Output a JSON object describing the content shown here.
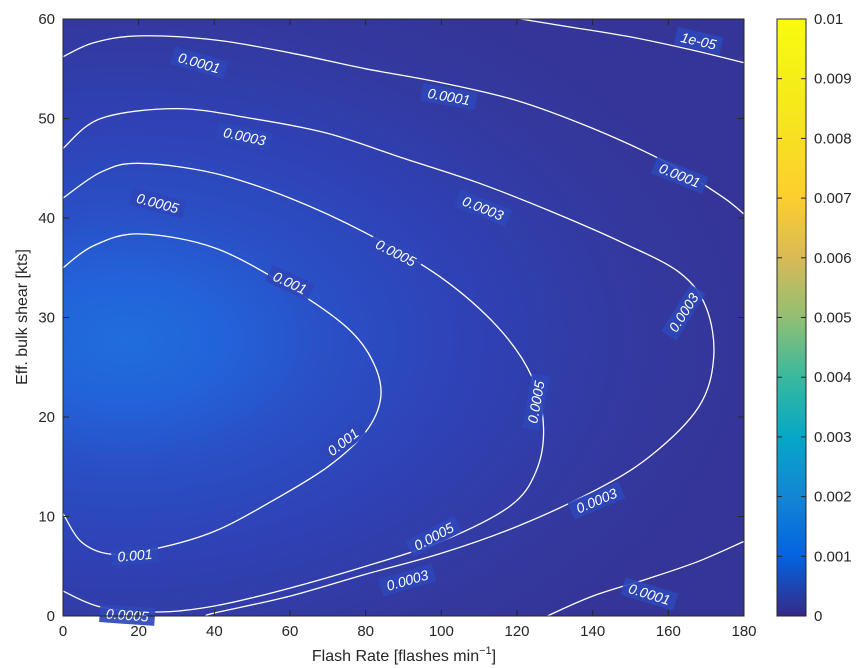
{
  "chart_data": {
    "type": "heatmap",
    "title": "",
    "xlabel": "Flash Rate [flashes min",
    "xlabel_sup": "−1",
    "xlabel_close": "]",
    "ylabel": "Eff. bulk shear [kts]",
    "xlim": [
      0,
      180
    ],
    "ylim": [
      0,
      60
    ],
    "x_ticks": [
      "0",
      "20",
      "40",
      "60",
      "80",
      "100",
      "120",
      "140",
      "160",
      "180"
    ],
    "y_ticks": [
      "0",
      "10",
      "20",
      "30",
      "40",
      "50",
      "60"
    ],
    "colorbar": {
      "colormap": "parula",
      "range": [
        0,
        0.01
      ],
      "ticks": [
        "0",
        "0.001",
        "0.002",
        "0.003",
        "0.004",
        "0.005",
        "0.006",
        "0.007",
        "0.008",
        "0.009",
        "0.01"
      ]
    },
    "contours": [
      {
        "level": "1e-05",
        "points": [
          [
            121,
            60
          ],
          [
            134,
            59.2
          ],
          [
            150,
            58.2
          ],
          [
            166,
            56.9
          ],
          [
            180,
            55.6
          ]
        ],
        "labels": [
          {
            "text": "1e-05",
            "x": 168,
            "y": 57.8,
            "angle": 13
          }
        ]
      },
      {
        "level": "0.0001",
        "points": [
          [
            0,
            56.2
          ],
          [
            8,
            57.6
          ],
          [
            20,
            58.3
          ],
          [
            40,
            57.9
          ],
          [
            60,
            56.6
          ],
          [
            80,
            55
          ],
          [
            100,
            53.6
          ],
          [
            120,
            51.8
          ],
          [
            140,
            49
          ],
          [
            160,
            45.5
          ],
          [
            174,
            42.2
          ],
          [
            180,
            40.4
          ]
        ],
        "labels": [
          {
            "text": "0.0001",
            "x": 36,
            "y": 55.6,
            "angle": 16
          },
          {
            "text": "0.0001",
            "x": 102,
            "y": 52.2,
            "angle": 10
          },
          {
            "text": "0.0001",
            "x": 163,
            "y": 44.3,
            "angle": 22
          }
        ]
      },
      {
        "level": "0.0001",
        "points": [
          [
            128,
            0
          ],
          [
            140,
            2
          ],
          [
            155,
            3.8
          ],
          [
            168,
            5.5
          ],
          [
            180,
            7.5
          ]
        ],
        "labels": [
          {
            "text": "0.0001",
            "x": 155,
            "y": 2.2,
            "angle": 17
          }
        ]
      },
      {
        "level": "0.0003",
        "points": [
          [
            0,
            47
          ],
          [
            10,
            50
          ],
          [
            30,
            51
          ],
          [
            50,
            50
          ],
          [
            70,
            48.5
          ],
          [
            90,
            46
          ],
          [
            110,
            43.5
          ],
          [
            130,
            40.5
          ],
          [
            148,
            37.5
          ],
          [
            163,
            34.5
          ],
          [
            170,
            31
          ],
          [
            172,
            26
          ],
          [
            168,
            21
          ],
          [
            155,
            16
          ],
          [
            140,
            12.5
          ],
          [
            120,
            9
          ],
          [
            100,
            6.3
          ],
          [
            80,
            4.2
          ],
          [
            60,
            2
          ],
          [
            40,
            0.3
          ],
          [
            38,
            0
          ]
        ],
        "labels": [
          {
            "text": "0.0003",
            "x": 48,
            "y": 48.2,
            "angle": 12
          },
          {
            "text": "0.0003",
            "x": 111,
            "y": 41,
            "angle": 22
          },
          {
            "text": "0.0003",
            "x": 164,
            "y": 30.5,
            "angle": -58
          },
          {
            "text": "0.0003",
            "x": 141,
            "y": 11.6,
            "angle": -23
          },
          {
            "text": "0.0003",
            "x": 91,
            "y": 3.6,
            "angle": -16
          }
        ]
      },
      {
        "level": "0.0005",
        "points": [
          [
            0,
            42
          ],
          [
            10,
            44.6
          ],
          [
            20,
            45.5
          ],
          [
            40,
            44.5
          ],
          [
            60,
            42
          ],
          [
            80,
            38.5
          ],
          [
            100,
            34
          ],
          [
            115,
            29
          ],
          [
            124,
            24
          ],
          [
            127,
            19
          ],
          [
            125,
            14.5
          ],
          [
            118,
            11
          ],
          [
            100,
            7.5
          ],
          [
            80,
            5
          ],
          [
            60,
            2.8
          ],
          [
            40,
            1
          ],
          [
            25,
            0.4
          ],
          [
            10,
            0.9
          ],
          [
            0,
            2.5
          ]
        ],
        "labels": [
          {
            "text": "0.0005",
            "x": 25,
            "y": 41.5,
            "angle": 15
          },
          {
            "text": "0.0005",
            "x": 88,
            "y": 36.5,
            "angle": 27
          },
          {
            "text": "0.0005",
            "x": 125,
            "y": 21.5,
            "angle": -80
          },
          {
            "text": "0.0005",
            "x": 98,
            "y": 8,
            "angle": -28
          },
          {
            "text": "0.0005",
            "x": 17,
            "y": 0.1,
            "angle": 4
          }
        ]
      },
      {
        "level": "0.001",
        "points": [
          [
            0,
            35
          ],
          [
            8,
            37.2
          ],
          [
            20,
            38.4
          ],
          [
            40,
            37
          ],
          [
            60,
            33
          ],
          [
            75,
            29
          ],
          [
            82,
            25.5
          ],
          [
            84,
            22
          ],
          [
            80,
            18.5
          ],
          [
            70,
            15
          ],
          [
            55,
            11.5
          ],
          [
            40,
            8.5
          ],
          [
            25,
            6.8
          ],
          [
            13,
            6.2
          ],
          [
            5,
            7.4
          ],
          [
            0,
            10.3
          ]
        ],
        "labels": [
          {
            "text": "0.001",
            "x": 60,
            "y": 33.5,
            "angle": 25
          },
          {
            "text": "0.001",
            "x": 74,
            "y": 17.5,
            "angle": -38
          },
          {
            "text": "0.001",
            "x": 19,
            "y": 6.1,
            "angle": -5
          }
        ]
      }
    ]
  }
}
